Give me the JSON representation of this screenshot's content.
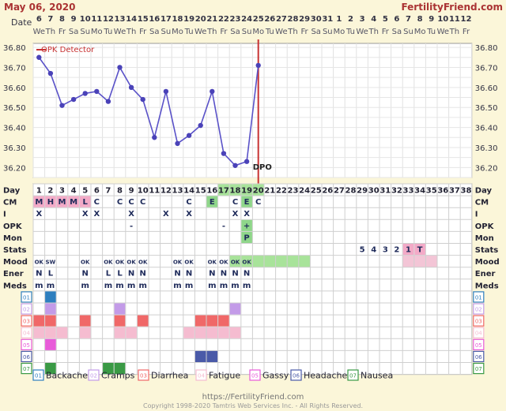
{
  "header": {
    "date": "May 06, 2020",
    "site": "FertilityFriend.com"
  },
  "labels": {
    "date_row": "Date",
    "day_row": "Day",
    "rows": [
      "CM",
      "I",
      "OPK",
      "Mon",
      "Stats",
      "Mood",
      "Ener",
      "Meds"
    ]
  },
  "dates": [
    "6",
    "7",
    "8",
    "9",
    "10",
    "11",
    "12",
    "13",
    "14",
    "15",
    "16",
    "17",
    "18",
    "19",
    "20",
    "21",
    "22",
    "23",
    "24",
    "25",
    "26",
    "27",
    "28",
    "29",
    "30",
    "31",
    "1",
    "2",
    "3",
    "4",
    "5",
    "6",
    "7",
    "8",
    "9",
    "10",
    "11",
    "12"
  ],
  "weekdays": [
    "We",
    "Th",
    "Fr",
    "Sa",
    "Su",
    "Mo",
    "Tu",
    "We",
    "Th",
    "Fr",
    "Sa",
    "Su",
    "Mo",
    "Tu",
    "We",
    "Th",
    "Fr",
    "Sa",
    "Su",
    "Mo",
    "Tu",
    "We",
    "Th",
    "Fr",
    "Sa",
    "Su",
    "Mo",
    "Tu",
    "We",
    "Th",
    "Fr",
    "Sa",
    "Su",
    "Mo",
    "Tu",
    "We",
    "Th",
    "Fr"
  ],
  "days": [
    "1",
    "2",
    "3",
    "4",
    "5",
    "6",
    "7",
    "8",
    "9",
    "10",
    "11",
    "12",
    "13",
    "14",
    "15",
    "16",
    "17",
    "18",
    "19",
    "20",
    "21",
    "22",
    "23",
    "24",
    "25",
    "26",
    "27",
    "28",
    "29",
    "30",
    "31",
    "32",
    "33",
    "34",
    "35",
    "36",
    "37",
    "38"
  ],
  "chart_data": {
    "type": "line",
    "ylabels": [
      "36.80",
      "36.70",
      "36.60",
      "36.50",
      "36.40",
      "36.30",
      "36.20"
    ],
    "ylim": [
      36.15,
      36.82
    ],
    "grid": true,
    "series": [
      {
        "day": 1,
        "temp": 36.75
      },
      {
        "day": 2,
        "temp": 36.67
      },
      {
        "day": 3,
        "temp": 36.51
      },
      {
        "day": 4,
        "temp": 36.54
      },
      {
        "day": 5,
        "temp": 36.57
      },
      {
        "day": 6,
        "temp": 36.58
      },
      {
        "day": 7,
        "temp": 36.53
      },
      {
        "day": 8,
        "temp": 36.7
      },
      {
        "day": 9,
        "temp": 36.6
      },
      {
        "day": 10,
        "temp": 36.54
      },
      {
        "day": 11,
        "temp": 36.35
      },
      {
        "day": 12,
        "temp": 36.58
      },
      {
        "day": 13,
        "temp": 36.32
      },
      {
        "day": 14,
        "temp": 36.36
      },
      {
        "day": 15,
        "temp": 36.41
      },
      {
        "day": 16,
        "temp": 36.58
      },
      {
        "day": 17,
        "temp": 36.27
      },
      {
        "day": 18,
        "temp": 36.21
      },
      {
        "day": 19,
        "temp": 36.23
      },
      {
        "day": 20,
        "temp": 36.71
      }
    ],
    "opk_line_day": 20,
    "opk_label": "OPK Detector",
    "dpo_label": "DPO"
  },
  "grid_rows": {
    "cm": [
      {
        "day": 1,
        "text": "M",
        "bg": "#f3aac7"
      },
      {
        "day": 2,
        "text": "H",
        "bg": "#f3aac7"
      },
      {
        "day": 3,
        "text": "M",
        "bg": "#f3aac7"
      },
      {
        "day": 4,
        "text": "M",
        "bg": "#f3aac7"
      },
      {
        "day": 5,
        "text": "L",
        "bg": "#f3aac7"
      },
      {
        "day": 6,
        "text": "C"
      },
      {
        "day": 8,
        "text": "C"
      },
      {
        "day": 9,
        "text": "C"
      },
      {
        "day": 10,
        "text": "C"
      },
      {
        "day": 14,
        "text": "C"
      },
      {
        "day": 16,
        "text": "E",
        "bg": "#8fd68a"
      },
      {
        "day": 18,
        "text": "C"
      },
      {
        "day": 19,
        "text": "E",
        "bg": "#8fd68a"
      },
      {
        "day": 20,
        "text": "C"
      }
    ],
    "intercourse": [
      {
        "day": 1,
        "text": "X"
      },
      {
        "day": 5,
        "text": "X"
      },
      {
        "day": 6,
        "text": "X"
      },
      {
        "day": 9,
        "text": "X"
      },
      {
        "day": 12,
        "text": "X"
      },
      {
        "day": 14,
        "text": "X"
      },
      {
        "day": 18,
        "text": "X"
      },
      {
        "day": 19,
        "text": "X"
      }
    ],
    "opk": [
      {
        "day": 9,
        "text": "-"
      },
      {
        "day": 17,
        "text": "-"
      },
      {
        "day": 19,
        "text": "+",
        "bg": "#8fd68a"
      }
    ],
    "mon": [
      {
        "day": 19,
        "text": "P",
        "bg": "#8fd68a"
      }
    ],
    "stats": [
      {
        "day": 29,
        "text": "5"
      },
      {
        "day": 30,
        "text": "4"
      },
      {
        "day": 31,
        "text": "3"
      },
      {
        "day": 32,
        "text": "2"
      },
      {
        "day": 33,
        "text": "1",
        "bg": "#f3aac7"
      },
      {
        "day": 34,
        "text": "T",
        "bg": "#f3aac7"
      }
    ],
    "stats_bar": {
      "from": 18,
      "to": 24,
      "bg": "#a8e39a"
    },
    "stats_pink": {
      "from": 33,
      "to": 35,
      "bg": "#f3c5d6"
    },
    "mood": [
      {
        "day": 1,
        "text": "OK"
      },
      {
        "day": 2,
        "text": "SW"
      },
      {
        "day": 5,
        "text": "OK"
      },
      {
        "day": 7,
        "text": "OK"
      },
      {
        "day": 8,
        "text": "OK"
      },
      {
        "day": 9,
        "text": "OK"
      },
      {
        "day": 10,
        "text": "OK"
      },
      {
        "day": 13,
        "text": "OK"
      },
      {
        "day": 14,
        "text": "OK"
      },
      {
        "day": 16,
        "text": "OK"
      },
      {
        "day": 17,
        "text": "OK"
      },
      {
        "day": 18,
        "text": "OK"
      },
      {
        "day": 19,
        "text": "OK"
      }
    ],
    "energy": [
      {
        "day": 1,
        "text": "N"
      },
      {
        "day": 2,
        "text": "L"
      },
      {
        "day": 5,
        "text": "N"
      },
      {
        "day": 7,
        "text": "L"
      },
      {
        "day": 8,
        "text": "L"
      },
      {
        "day": 9,
        "text": "N"
      },
      {
        "day": 10,
        "text": "N"
      },
      {
        "day": 13,
        "text": "N"
      },
      {
        "day": 14,
        "text": "N"
      },
      {
        "day": 16,
        "text": "N"
      },
      {
        "day": 17,
        "text": "N"
      },
      {
        "day": 18,
        "text": "N"
      },
      {
        "day": 19,
        "text": "N"
      }
    ],
    "meds": [
      {
        "day": 1,
        "text": "m"
      },
      {
        "day": 2,
        "text": "m"
      },
      {
        "day": 5,
        "text": "m"
      },
      {
        "day": 7,
        "text": "m"
      },
      {
        "day": 8,
        "text": "m"
      },
      {
        "day": 9,
        "text": "m"
      },
      {
        "day": 10,
        "text": "m"
      },
      {
        "day": 13,
        "text": "m"
      },
      {
        "day": 14,
        "text": "m"
      },
      {
        "day": 16,
        "text": "m"
      },
      {
        "day": 17,
        "text": "m"
      },
      {
        "day": 18,
        "text": "m"
      },
      {
        "day": 19,
        "text": "m"
      }
    ]
  },
  "symptoms": [
    {
      "code": "01",
      "name": "Backache",
      "color": "#2e7fbf",
      "days": [
        2
      ]
    },
    {
      "code": "02",
      "name": "Cramps",
      "color": "#c39be8",
      "days": [
        2,
        8,
        18
      ]
    },
    {
      "code": "03",
      "name": "Diarrhea",
      "color": "#f06868",
      "days": [
        1,
        2,
        5,
        8,
        10,
        15,
        16,
        17
      ]
    },
    {
      "code": "04",
      "name": "Fatigue",
      "color": "#f5bcd0",
      "days": [
        1,
        2,
        3,
        5,
        8,
        9,
        14,
        15,
        16,
        17,
        18
      ]
    },
    {
      "code": "05",
      "name": "Gassy",
      "color": "#e85bd9",
      "days": [
        2
      ]
    },
    {
      "code": "06",
      "name": "Headache",
      "color": "#4a5aa8",
      "days": [
        15,
        16
      ]
    },
    {
      "code": "07",
      "name": "Nausea",
      "color": "#3a9a45",
      "days": [
        2,
        7,
        8
      ]
    }
  ],
  "footer": {
    "url": "https://FertilityFriend.com",
    "copyright": "Copyright 1998-2020 Tamtris Web Services Inc. - All Rights Reserved."
  }
}
